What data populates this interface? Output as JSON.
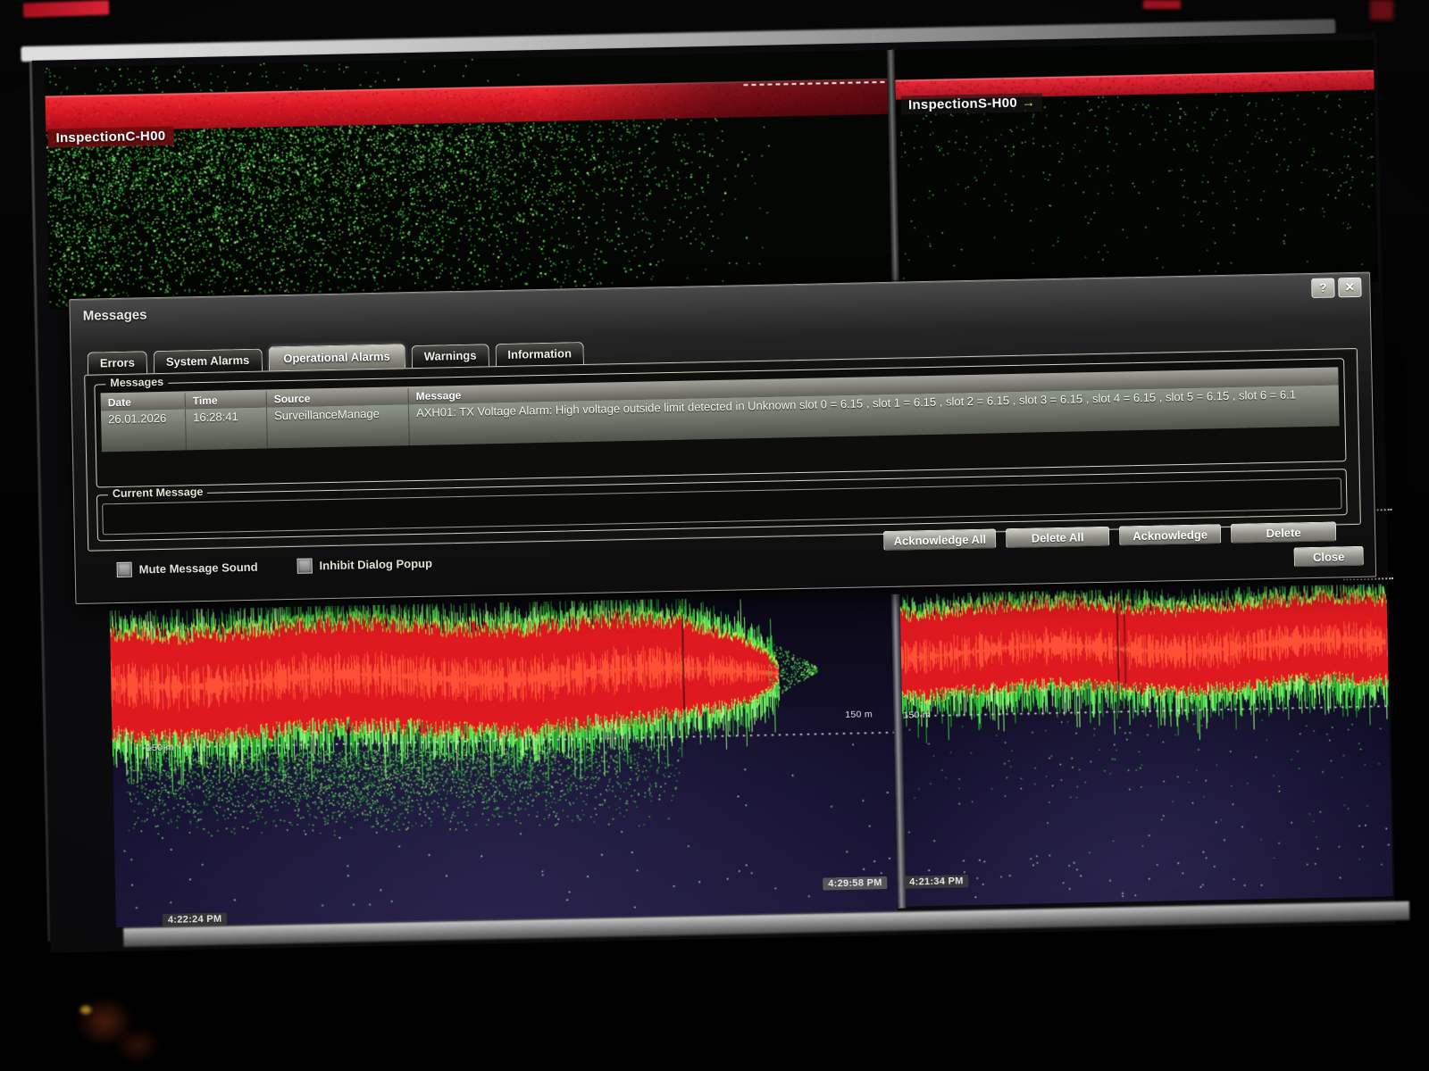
{
  "screen": {
    "top_left_panel": {
      "label": "InspectionC-H00"
    },
    "top_right_panel": {
      "label": "InspectionS-H00",
      "arrow": "→"
    },
    "bottom_left_panel": {
      "depth_label": "150 m",
      "edge_depth_label": "150 m",
      "timestamp": "4:22:24 PM",
      "edge_timestamp": "4:29:58 PM"
    },
    "bottom_right_panel": {
      "depth_label": "150 m",
      "timestamp": "4:21:34 PM"
    }
  },
  "dialog": {
    "title": "Messages",
    "help_label": "?",
    "close_label": "✕",
    "tabs": [
      {
        "label": "Errors",
        "active": false
      },
      {
        "label": "System Alarms",
        "active": false
      },
      {
        "label": "Operational Alarms",
        "active": true
      },
      {
        "label": "Warnings",
        "active": false
      },
      {
        "label": "Information",
        "active": false
      }
    ],
    "messages_group": {
      "legend": "Messages",
      "columns": [
        "Date",
        "Time",
        "Source",
        "Message"
      ],
      "rows": [
        {
          "date": "26.01.2026",
          "time": "16:28:41",
          "source": "SurveillanceManage",
          "message": "AXH01: TX Voltage Alarm:  High voltage outside limit detected in Unknown slot 0 = 6.15 , slot 1 = 6.15 , slot 2 = 6.15 , slot 3 = 6.15 , slot 4 = 6.15 , slot 5 = 6.15 , slot 6 = 6.1"
        }
      ]
    },
    "current_message_group": {
      "legend": "Current Message",
      "value": ""
    },
    "buttons": {
      "acknowledge_all": "Acknowledge All",
      "delete_all": "Delete All",
      "acknowledge": "Acknowledge",
      "delete": "Delete",
      "close": "Close"
    },
    "checkboxes": [
      {
        "label": "Mute Message Sound",
        "checked": false
      },
      {
        "label": "Inhibit Dialog Popup",
        "checked": false
      }
    ]
  },
  "colors": {
    "alarm_red": "#d81824",
    "echo_green": "#3fd94a",
    "echo_yellow": "#ffd83a",
    "bottom_background": "#141028",
    "dialog_gray": "#2e2e2e"
  }
}
